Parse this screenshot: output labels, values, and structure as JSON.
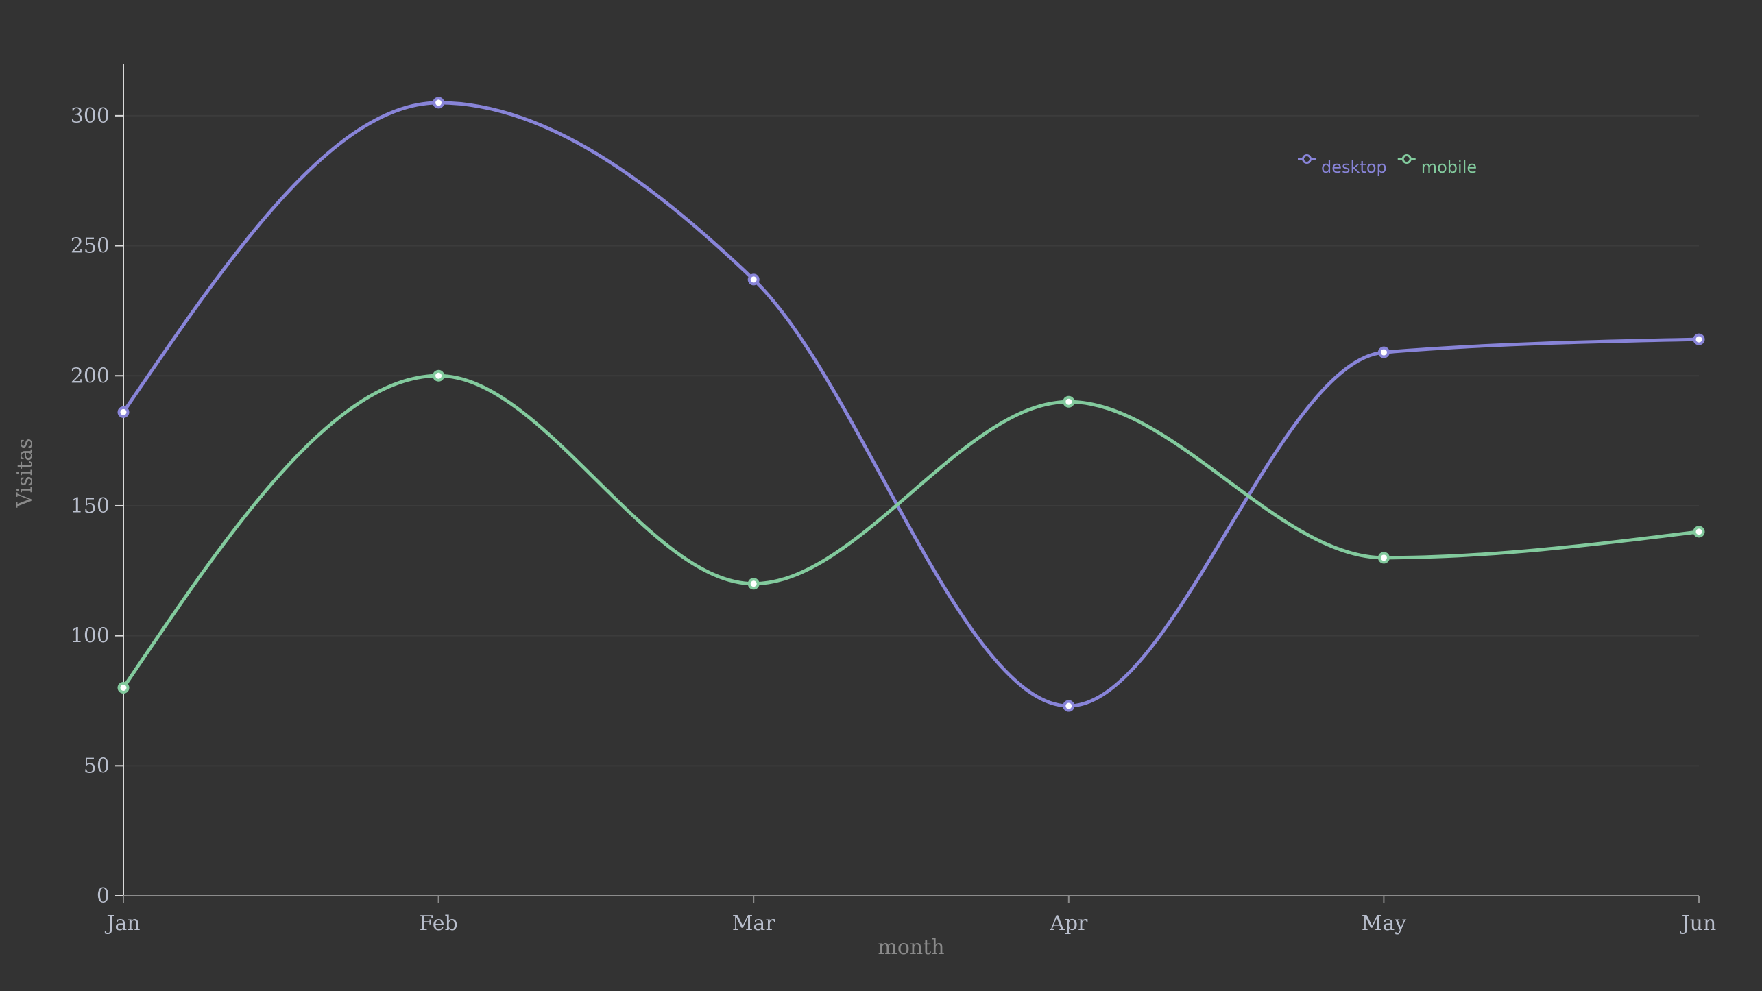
{
  "chart_data": {
    "type": "line",
    "curve": "smooth",
    "categories": [
      "Jan",
      "Feb",
      "Mar",
      "Apr",
      "May",
      "Jun"
    ],
    "series": [
      {
        "name": "desktop",
        "color": "#8884d8",
        "values": [
          186,
          305,
          237,
          73,
          209,
          214
        ]
      },
      {
        "name": "mobile",
        "color": "#82ca9d",
        "values": [
          80,
          200,
          120,
          190,
          130,
          140
        ]
      }
    ],
    "xlabel": "month",
    "ylabel": "Visitas",
    "ylim": [
      0,
      320
    ],
    "yticks": [
      0,
      50,
      100,
      150,
      200,
      250,
      300
    ],
    "grid": "horizontal",
    "legend": "top-right",
    "background": "#333333"
  }
}
